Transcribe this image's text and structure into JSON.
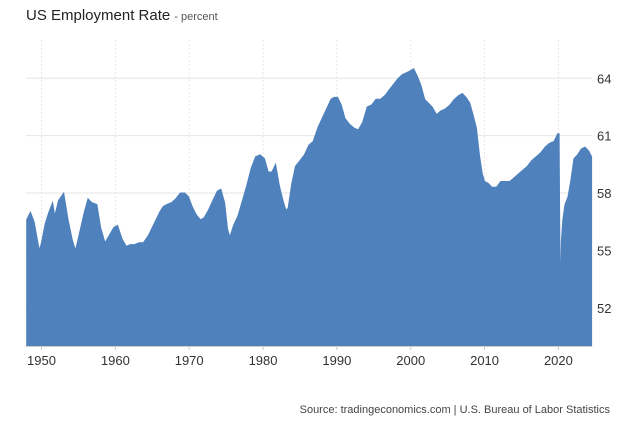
{
  "title": "US Employment Rate",
  "subtitle": "- percent",
  "source": "Source: tradingeconomics.com | U.S. Bureau of Labor Statistics",
  "colors": {
    "fill": "#4f81bd",
    "grid": "#e6e6e6",
    "axis": "#cccccc",
    "text": "#333333"
  },
  "chart_data": {
    "type": "area",
    "series": [
      {
        "values": [
          [
            1948.0,
            56.6
          ],
          [
            1948.5,
            57.0
          ],
          [
            1949.0,
            56.5
          ],
          [
            1949.7,
            55.0
          ],
          [
            1950.0,
            55.4
          ],
          [
            1950.5,
            56.4
          ],
          [
            1951.0,
            57.0
          ],
          [
            1951.5,
            57.5
          ],
          [
            1951.8,
            56.8
          ],
          [
            1952.3,
            57.6
          ],
          [
            1953.0,
            58.0
          ],
          [
            1953.6,
            56.6
          ],
          [
            1954.2,
            55.5
          ],
          [
            1954.6,
            55.0
          ],
          [
            1955.2,
            56.0
          ],
          [
            1955.8,
            57.0
          ],
          [
            1956.3,
            57.7
          ],
          [
            1956.8,
            57.5
          ],
          [
            1957.5,
            57.4
          ],
          [
            1958.0,
            56.2
          ],
          [
            1958.6,
            55.4
          ],
          [
            1959.2,
            55.8
          ],
          [
            1959.8,
            56.2
          ],
          [
            1960.3,
            56.3
          ],
          [
            1960.9,
            55.6
          ],
          [
            1961.5,
            55.2
          ],
          [
            1962.0,
            55.3
          ],
          [
            1962.6,
            55.3
          ],
          [
            1963.2,
            55.4
          ],
          [
            1963.8,
            55.4
          ],
          [
            1964.5,
            55.8
          ],
          [
            1965.0,
            56.2
          ],
          [
            1965.5,
            56.6
          ],
          [
            1966.0,
            57.0
          ],
          [
            1966.5,
            57.3
          ],
          [
            1967.0,
            57.4
          ],
          [
            1967.6,
            57.5
          ],
          [
            1968.2,
            57.7
          ],
          [
            1968.8,
            58.0
          ],
          [
            1969.4,
            58.0
          ],
          [
            1969.9,
            57.8
          ],
          [
            1970.4,
            57.3
          ],
          [
            1970.9,
            56.9
          ],
          [
            1971.5,
            56.6
          ],
          [
            1972.0,
            56.7
          ],
          [
            1972.6,
            57.1
          ],
          [
            1973.2,
            57.6
          ],
          [
            1973.8,
            58.1
          ],
          [
            1974.3,
            58.2
          ],
          [
            1974.8,
            57.5
          ],
          [
            1975.2,
            56.1
          ],
          [
            1975.5,
            55.7
          ],
          [
            1976.0,
            56.3
          ],
          [
            1976.6,
            56.8
          ],
          [
            1977.2,
            57.6
          ],
          [
            1977.8,
            58.4
          ],
          [
            1978.4,
            59.3
          ],
          [
            1979.0,
            59.9
          ],
          [
            1979.6,
            60.0
          ],
          [
            1980.2,
            59.8
          ],
          [
            1980.7,
            59.1
          ],
          [
            1981.2,
            59.1
          ],
          [
            1981.7,
            59.5
          ],
          [
            1982.2,
            58.4
          ],
          [
            1982.7,
            57.6
          ],
          [
            1983.1,
            57.1
          ],
          [
            1983.4,
            57.2
          ],
          [
            1983.9,
            58.5
          ],
          [
            1984.4,
            59.4
          ],
          [
            1985.0,
            59.7
          ],
          [
            1985.6,
            60.0
          ],
          [
            1986.2,
            60.5
          ],
          [
            1986.8,
            60.7
          ],
          [
            1987.4,
            61.4
          ],
          [
            1988.0,
            61.9
          ],
          [
            1988.6,
            62.4
          ],
          [
            1989.2,
            62.9
          ],
          [
            1989.6,
            63.0
          ],
          [
            1990.1,
            63.0
          ],
          [
            1990.6,
            62.6
          ],
          [
            1991.1,
            61.9
          ],
          [
            1991.7,
            61.6
          ],
          [
            1992.3,
            61.4
          ],
          [
            1992.9,
            61.3
          ],
          [
            1993.5,
            61.7
          ],
          [
            1994.1,
            62.5
          ],
          [
            1994.7,
            62.6
          ],
          [
            1995.3,
            62.9
          ],
          [
            1995.9,
            62.9
          ],
          [
            1996.5,
            63.1
          ],
          [
            1997.1,
            63.4
          ],
          [
            1997.7,
            63.7
          ],
          [
            1998.3,
            64.0
          ],
          [
            1998.9,
            64.2
          ],
          [
            1999.5,
            64.3
          ],
          [
            2000.0,
            64.4
          ],
          [
            2000.4,
            64.5
          ],
          [
            2000.9,
            64.1
          ],
          [
            2001.4,
            63.6
          ],
          [
            2001.9,
            62.9
          ],
          [
            2002.4,
            62.7
          ],
          [
            2002.9,
            62.5
          ],
          [
            2003.5,
            62.1
          ],
          [
            2004.1,
            62.3
          ],
          [
            2004.7,
            62.4
          ],
          [
            2005.3,
            62.6
          ],
          [
            2005.9,
            62.9
          ],
          [
            2006.5,
            63.1
          ],
          [
            2007.0,
            63.2
          ],
          [
            2007.5,
            63.0
          ],
          [
            2008.0,
            62.7
          ],
          [
            2008.5,
            62.0
          ],
          [
            2008.9,
            61.4
          ],
          [
            2009.3,
            60.0
          ],
          [
            2009.7,
            59.0
          ],
          [
            2010.0,
            58.6
          ],
          [
            2010.5,
            58.5
          ],
          [
            2011.0,
            58.3
          ],
          [
            2011.6,
            58.3
          ],
          [
            2012.2,
            58.6
          ],
          [
            2012.8,
            58.6
          ],
          [
            2013.4,
            58.6
          ],
          [
            2014.0,
            58.8
          ],
          [
            2014.6,
            59.0
          ],
          [
            2015.2,
            59.2
          ],
          [
            2015.8,
            59.4
          ],
          [
            2016.4,
            59.7
          ],
          [
            2017.0,
            59.9
          ],
          [
            2017.6,
            60.1
          ],
          [
            2018.2,
            60.4
          ],
          [
            2018.8,
            60.6
          ],
          [
            2019.4,
            60.7
          ],
          [
            2019.9,
            61.1
          ],
          [
            2020.1,
            61.1
          ],
          [
            2020.25,
            52.4
          ],
          [
            2020.4,
            55.5
          ],
          [
            2020.6,
            56.6
          ],
          [
            2020.9,
            57.4
          ],
          [
            2021.3,
            57.8
          ],
          [
            2021.7,
            58.7
          ],
          [
            2022.1,
            59.8
          ],
          [
            2022.6,
            60.0
          ],
          [
            2023.1,
            60.3
          ],
          [
            2023.6,
            60.4
          ],
          [
            2024.1,
            60.2
          ],
          [
            2024.5,
            59.9
          ]
        ]
      }
    ],
    "xticks": [
      "1950",
      "1960",
      "1970",
      "1980",
      "1990",
      "2000",
      "2010",
      "2020"
    ],
    "yticks": [
      "52",
      "55",
      "58",
      "61",
      "64"
    ],
    "xlim": [
      1947.9,
      2024.55
    ],
    "ylim": [
      50.0,
      66.0
    ],
    "grid": true,
    "y_axis_side": "right",
    "legend": "none"
  }
}
